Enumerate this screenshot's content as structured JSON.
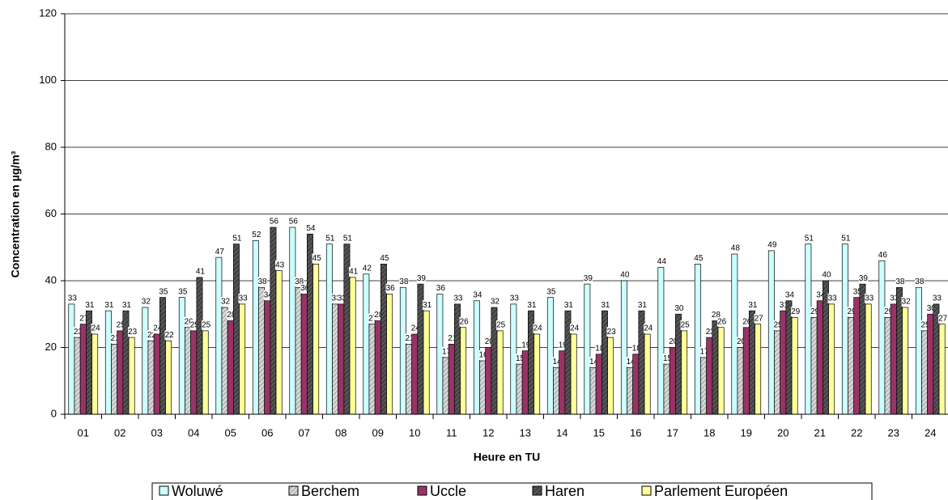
{
  "chart_data": {
    "type": "bar",
    "y_label": "Concentration en µg/m³",
    "x_label": "Heure en TU",
    "categories": [
      "01",
      "02",
      "03",
      "04",
      "05",
      "06",
      "07",
      "08",
      "09",
      "10",
      "11",
      "12",
      "13",
      "14",
      "15",
      "16",
      "17",
      "18",
      "19",
      "20",
      "21",
      "22",
      "23",
      "24"
    ],
    "series": [
      {
        "name": "Woluwé",
        "color": "#ccffff",
        "values": [
          33,
          31,
          32,
          35,
          47,
          52,
          56,
          51,
          42,
          38,
          36,
          34,
          33,
          35,
          39,
          40,
          44,
          45,
          48,
          49,
          51,
          51,
          46,
          38
        ]
      },
      {
        "name": "Berchem",
        "color": "#d9d9d9",
        "hatch": true,
        "values": [
          23,
          21,
          22,
          26,
          32,
          38,
          38,
          33,
          27,
          21,
          17,
          16,
          15,
          14,
          14,
          14,
          15,
          17,
          20,
          25,
          29,
          29,
          29,
          25
        ]
      },
      {
        "name": "Uccle",
        "color": "#993366",
        "values": [
          27,
          25,
          24,
          25,
          28,
          34,
          36,
          33,
          28,
          24,
          21,
          20,
          19,
          19,
          18,
          18,
          20,
          23,
          26,
          31,
          34,
          35,
          33,
          30
        ]
      },
      {
        "name": "Haren",
        "color": "#555555",
        "hatch": true,
        "values": [
          31,
          31,
          35,
          41,
          51,
          56,
          54,
          51,
          45,
          39,
          33,
          32,
          31,
          31,
          31,
          31,
          30,
          28,
          31,
          34,
          40,
          39,
          38,
          33
        ]
      },
      {
        "name": "Parlement Européen",
        "color": "#ffff99",
        "values": [
          24,
          23,
          22,
          25,
          33,
          43,
          45,
          41,
          36,
          31,
          26,
          25,
          24,
          24,
          23,
          24,
          25,
          26,
          27,
          29,
          33,
          33,
          32,
          27
        ]
      }
    ],
    "ylim": [
      0,
      120
    ],
    "yticks": [
      0,
      20,
      40,
      60,
      80,
      100,
      120
    ],
    "grid": true,
    "legend": "bottom"
  }
}
